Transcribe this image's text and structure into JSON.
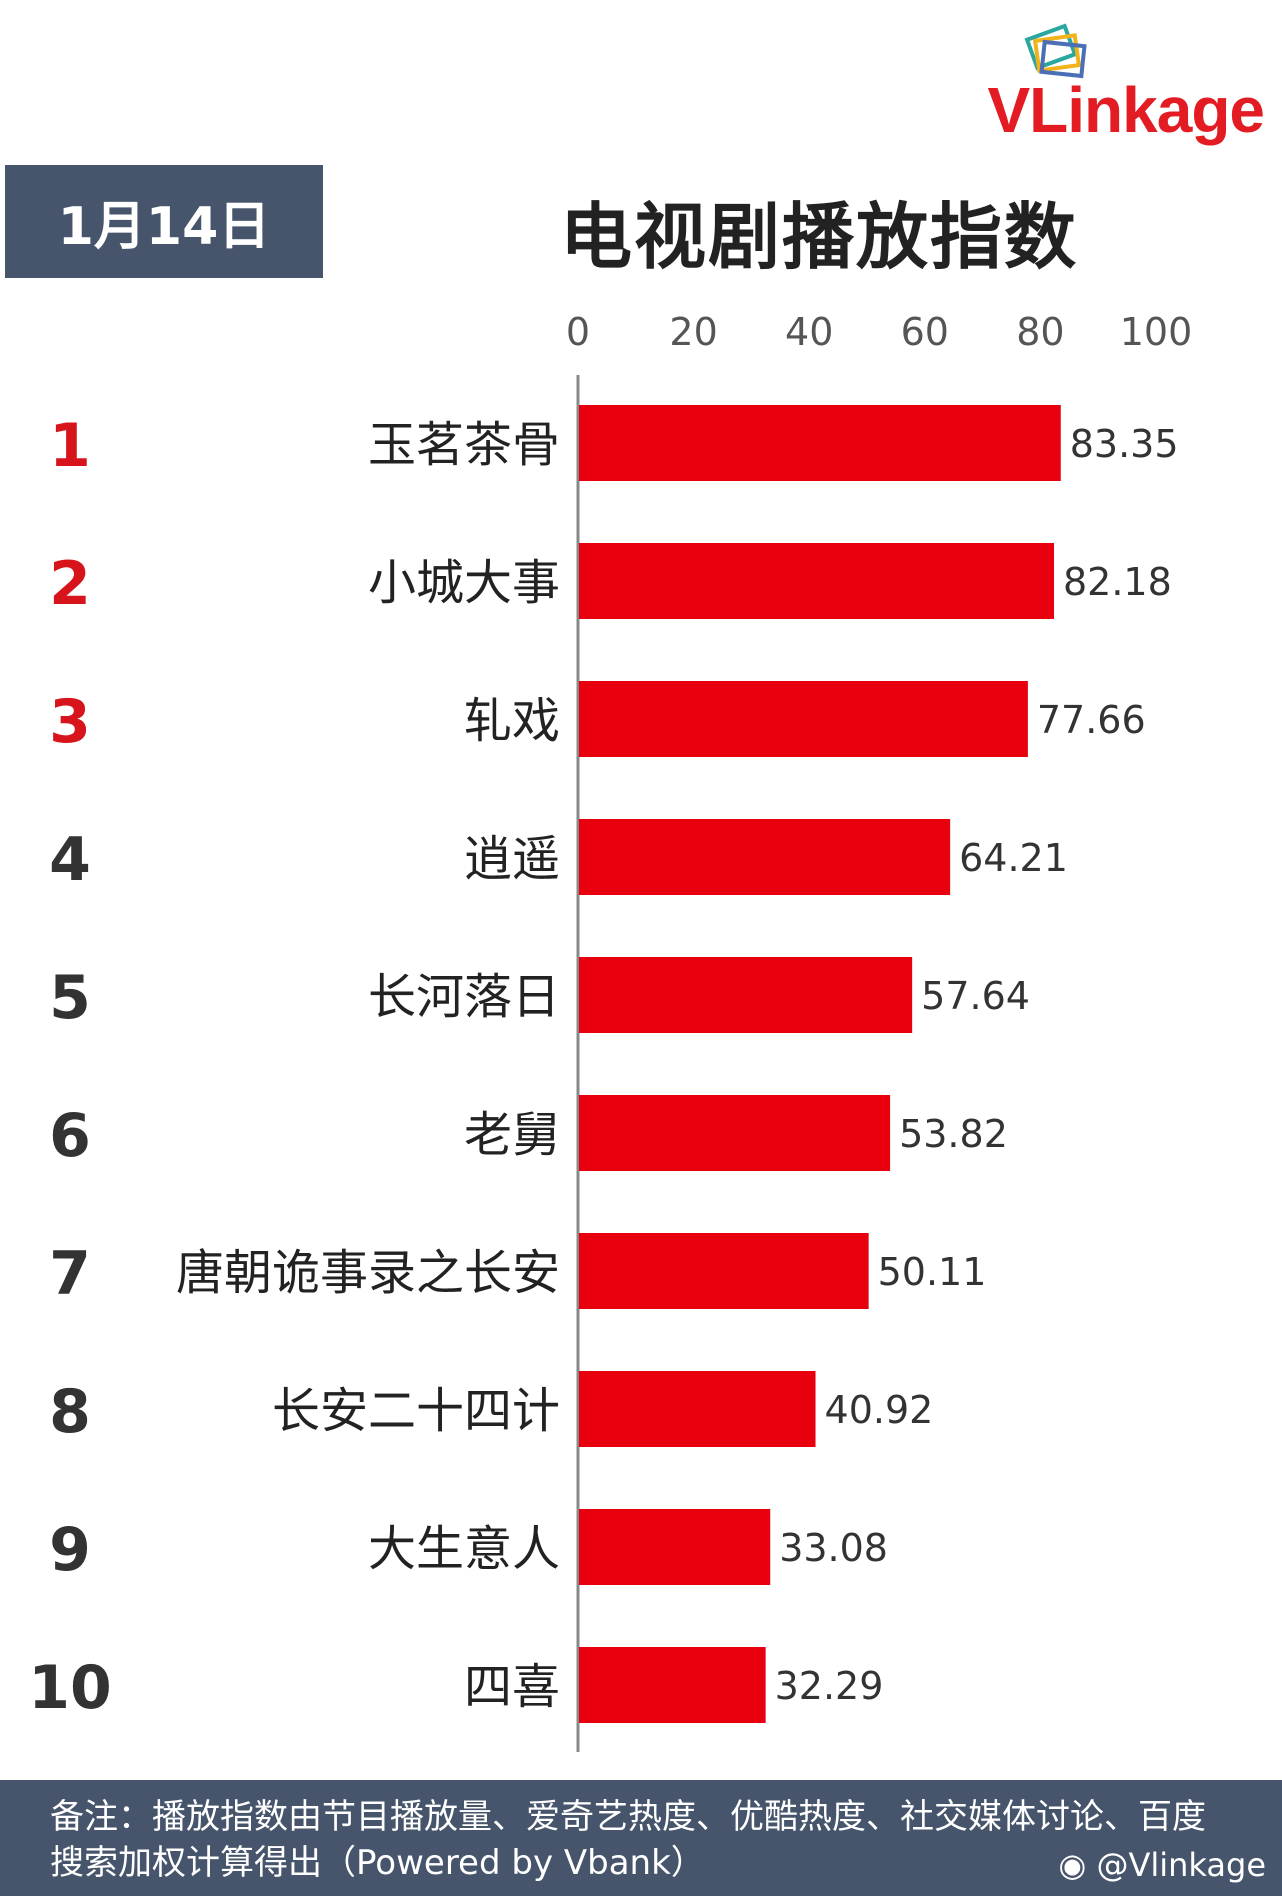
{
  "logo": {
    "v": "V",
    "l": "L",
    "rest": "inkage"
  },
  "date": "1月14日",
  "title": "电视剧播放指数",
  "chart_data": {
    "type": "bar",
    "orientation": "horizontal",
    "ranks": [
      "1",
      "2",
      "3",
      "4",
      "5",
      "6",
      "7",
      "8",
      "9",
      "10"
    ],
    "categories": [
      "玉茗茶骨",
      "小城大事",
      "轧戏",
      "逍遥",
      "长河落日",
      "老舅",
      "唐朝诡事录之长安",
      "长安二十四计",
      "大生意人",
      "四喜"
    ],
    "values": [
      83.35,
      82.18,
      77.66,
      64.21,
      57.64,
      53.82,
      50.11,
      40.92,
      33.08,
      32.29
    ],
    "value_labels": [
      "83.35",
      "82.18",
      "77.66",
      "64.21",
      "57.64",
      "53.82",
      "50.11",
      "40.92",
      "33.08",
      "32.29"
    ],
    "xticks": [
      "0",
      "20",
      "40",
      "60",
      "80",
      "100"
    ],
    "xlim": [
      0,
      100
    ],
    "bar_color": "#e8000e",
    "top_rank_color": "#d7141c",
    "rank_color": "#333333"
  },
  "footer": {
    "note": "备注：播放指数由节目播放量、爱奇艺热度、优酷热度、社交媒体讨论、百度搜索加权计算得出（Powered by Vbank）",
    "handle": "@Vlinkage"
  }
}
